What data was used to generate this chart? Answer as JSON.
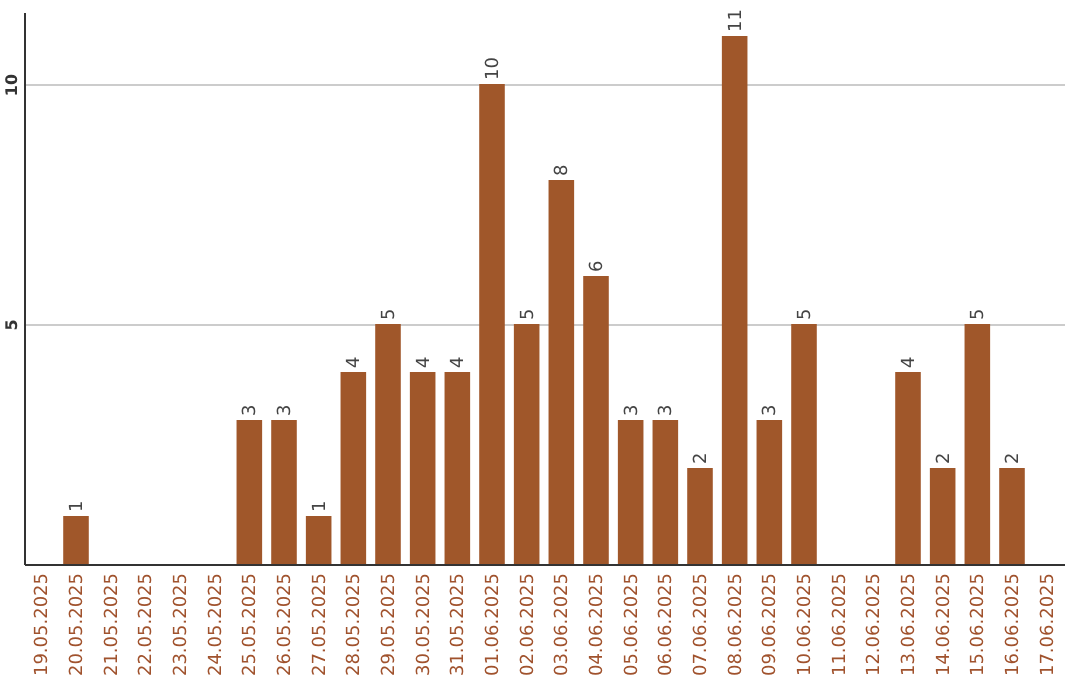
{
  "chart_data": {
    "type": "bar",
    "categories": [
      "19.05.2025",
      "20.05.2025",
      "21.05.2025",
      "22.05.2025",
      "23.05.2025",
      "24.05.2025",
      "25.05.2025",
      "26.05.2025",
      "27.05.2025",
      "28.05.2025",
      "29.05.2025",
      "30.05.2025",
      "31.05.2025",
      "01.06.2025",
      "02.06.2025",
      "03.06.2025",
      "04.06.2025",
      "05.06.2025",
      "06.06.2025",
      "07.06.2025",
      "08.06.2025",
      "09.06.2025",
      "10.06.2025",
      "11.06.2025",
      "12.06.2025",
      "13.06.2025",
      "14.06.2025",
      "15.06.2025",
      "16.06.2025",
      "17.06.2025"
    ],
    "values": [
      null,
      1,
      null,
      null,
      null,
      null,
      3,
      3,
      1,
      4,
      5,
      4,
      4,
      10,
      5,
      8,
      6,
      3,
      3,
      2,
      11,
      3,
      5,
      null,
      null,
      4,
      2,
      5,
      2,
      null
    ],
    "color": "#a0572a",
    "ylim": [
      0,
      11.5
    ],
    "yticks": [
      5,
      10
    ],
    "grid": "y",
    "data_labels": true
  }
}
